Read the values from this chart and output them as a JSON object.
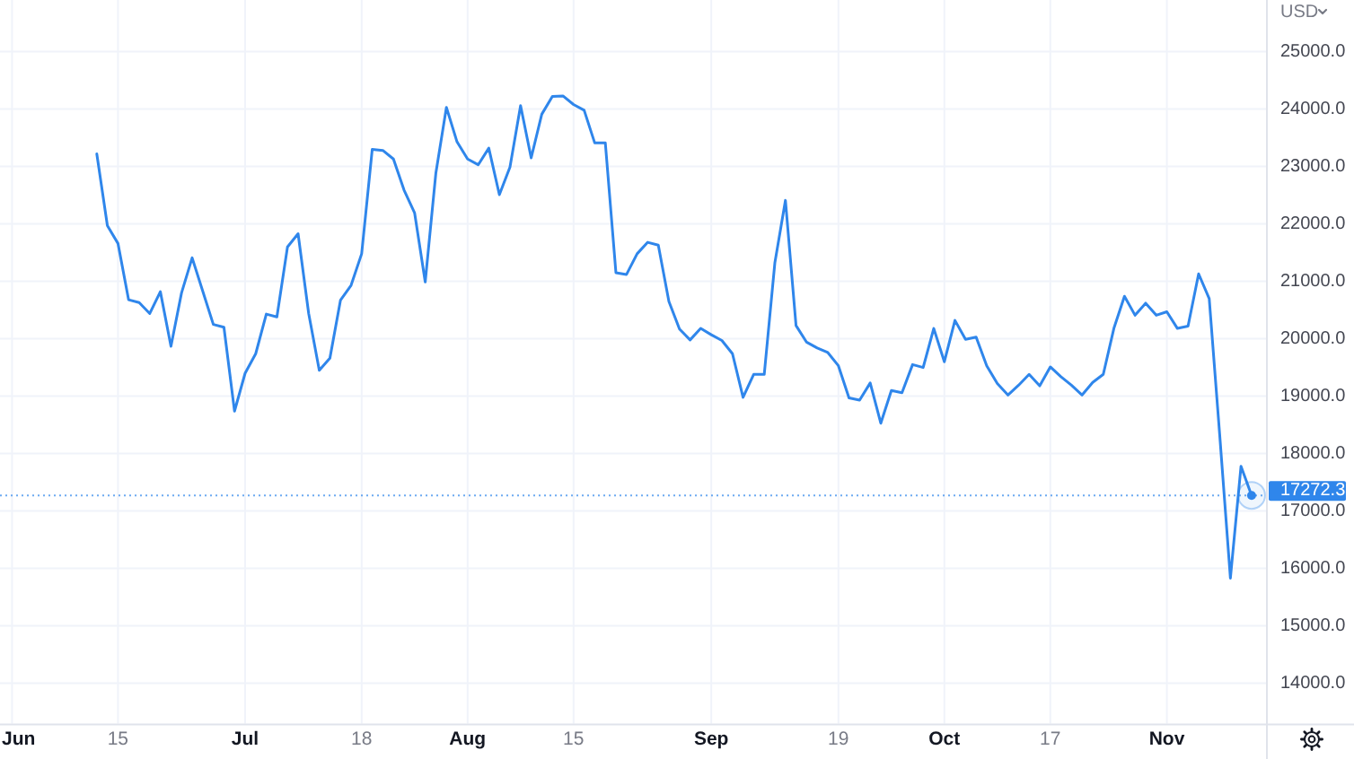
{
  "chart_data": {
    "type": "line",
    "ylabel": "USD",
    "categories": [
      "Jun",
      null,
      null,
      null,
      null,
      null,
      null,
      null,
      null,
      null,
      "15",
      null,
      null,
      null,
      null,
      null,
      null,
      null,
      null,
      null,
      null,
      null,
      "Jul",
      null,
      null,
      null,
      null,
      null,
      null,
      null,
      null,
      null,
      null,
      "18",
      null,
      null,
      null,
      null,
      null,
      null,
      null,
      null,
      null,
      "Aug",
      null,
      null,
      null,
      null,
      null,
      null,
      null,
      null,
      null,
      "15",
      null,
      null,
      null,
      null,
      null,
      null,
      null,
      null,
      null,
      null,
      null,
      null,
      "Sep",
      null,
      null,
      null,
      null,
      null,
      null,
      null,
      null,
      null,
      null,
      null,
      "19",
      null,
      null,
      null,
      null,
      null,
      null,
      null,
      null,
      null,
      "Oct",
      null,
      null,
      null,
      null,
      null,
      null,
      null,
      null,
      null,
      "17",
      null,
      null,
      null,
      null,
      null,
      null,
      null,
      null,
      null,
      null,
      "Nov",
      null,
      null,
      null,
      null,
      null,
      null,
      null,
      null
    ],
    "values": [
      null,
      null,
      null,
      null,
      null,
      null,
      null,
      null,
      23220,
      21970,
      21660,
      20680,
      20630,
      20440,
      20820,
      19870,
      20800,
      21410,
      20830,
      20250,
      20200,
      18740,
      19400,
      19740,
      20430,
      20380,
      21600,
      21830,
      20440,
      19450,
      19660,
      20670,
      20930,
      21480,
      23300,
      23280,
      23130,
      22590,
      22190,
      20990,
      22880,
      24030,
      23430,
      23130,
      23030,
      23320,
      22510,
      22990,
      24060,
      23150,
      23910,
      24220,
      24230,
      24080,
      23980,
      23410,
      23410,
      21150,
      21120,
      21480,
      21680,
      21630,
      20650,
      20170,
      19980,
      20180,
      20070,
      19970,
      19740,
      18980,
      19380,
      19380,
      21320,
      22410,
      20230,
      19940,
      19840,
      19760,
      19530,
      18970,
      18930,
      19230,
      18530,
      19100,
      19060,
      19550,
      19500,
      20180,
      19600,
      20320,
      19990,
      20030,
      19530,
      19220,
      19020,
      19190,
      19380,
      19180,
      19510,
      19340,
      19190,
      19020,
      19240,
      19380,
      20180,
      20740,
      20410,
      20620,
      20410,
      20470,
      20180,
      20220,
      21130,
      20700,
      18300,
      15830,
      17780,
      17272.3
    ],
    "color": "#2f86eb",
    "ylim": [
      13300,
      25900
    ],
    "yticks": [
      {
        "value": 14000,
        "label": "14000.0"
      },
      {
        "value": 15000,
        "label": "15000.0"
      },
      {
        "value": 16000,
        "label": "16000.0"
      },
      {
        "value": 17000,
        "label": "17000.0"
      },
      {
        "value": 18000,
        "label": "18000.0"
      },
      {
        "value": 19000,
        "label": "19000.0"
      },
      {
        "value": 20000,
        "label": "20000.0"
      },
      {
        "value": 21000,
        "label": "21000.0"
      },
      {
        "value": 22000,
        "label": "22000.0"
      },
      {
        "value": 23000,
        "label": "23000.0"
      },
      {
        "value": 24000,
        "label": "24000.0"
      },
      {
        "value": 25000,
        "label": "25000.0"
      }
    ],
    "grid": true,
    "ref_lines": [
      {
        "axis": "y",
        "value": 17272.3,
        "label": "17272.3",
        "color": "#2f86eb",
        "line_style": "dotted"
      }
    ]
  }
}
